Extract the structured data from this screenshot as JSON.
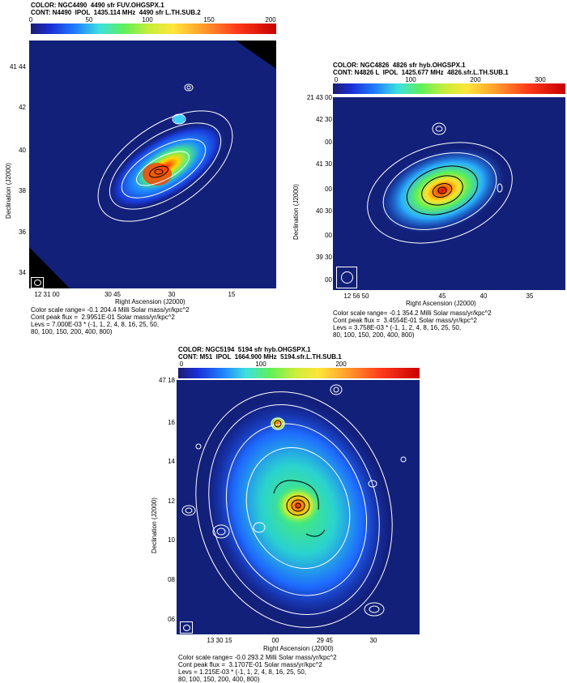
{
  "panel1": {
    "color_line": "COLOR: NGC4490  4490 sfr FUV.OHGSPX.1",
    "cont_line": "CONT: N4490  IPOL  1435.114 MHz  4490 sfr L.TH.SUB.2",
    "cbar_ticks": [
      "0",
      "50",
      "100",
      "150",
      "200"
    ],
    "y_ticks": [
      "41 44",
      "42",
      "40",
      "38",
      "36",
      "34"
    ],
    "x_ticks": [
      "12 31 00",
      "30 45",
      "30",
      "15"
    ],
    "xlabel": "Right Ascension (J2000)",
    "ylabel": "Declination (J2000)",
    "foot": [
      "Color scale range= -0.1 204.4 Milli Solar mass/yr/kpc^2",
      "Cont peak flux =  2.9951E-01 Solar mass/yr/kpc^2",
      "Levs = 7.000E-03 * (-1, 1, 2, 4, 8, 16, 25, 50,",
      "80, 100, 150, 200, 400, 800)"
    ]
  },
  "panel2": {
    "color_line": "COLOR: NGC4826  4826 sfr hyb.OHGSPX.1",
    "cont_line": "CONT: N4826 L  IPOL  1425.677 MHz  4826.sfr.L.TH.SUB.1",
    "cbar_ticks": [
      "0",
      "100",
      "200",
      "300"
    ],
    "y_ticks": [
      "21 43 00",
      "42 30",
      "00",
      "41 30",
      "00",
      "40 30",
      "00",
      "39 30",
      "00"
    ],
    "x_ticks": [
      "12 56 50",
      "45",
      "40",
      "35"
    ],
    "xlabel": "Right Ascension (J2000)",
    "ylabel": "Declination (J2000)",
    "foot": [
      "Color scale range= -0.1 354.2 Milli Solar mass/yr/kpc^2",
      "Cont peak flux =  3.4554E-01 Solar mass/yr/kpc^2",
      "Levs = 3.758E-03 * (-1, 1, 2, 4, 8, 16, 25, 50,",
      "80, 100, 150, 200, 400, 800)"
    ]
  },
  "panel3": {
    "color_line": "COLOR: NGC5194  5194 sfr hyb.OHGSPX.1",
    "cont_line": "CONT: M51  IPOL  1664.900 MHz  5194.sfr.L.TH.SUB.1",
    "cbar_ticks": [
      "0",
      "100",
      "200"
    ],
    "y_ticks": [
      "47 18",
      "16",
      "14",
      "12",
      "10",
      "08",
      "06"
    ],
    "x_ticks": [
      "13 30 15",
      "00",
      "29 45",
      "30"
    ],
    "xlabel": "Right Ascension (J2000)",
    "ylabel": "Declination (J2000)",
    "foot": [
      "Color scale range= -0.0 293.2 Milli Solar mass/yr/kpc^2",
      "Cont peak flux =  3.1707E-01 Solar mass/yr/kpc^2",
      "Levs = 1.215E-03 * (-1, 1, 2, 4, 8, 16, 25, 50,",
      "80, 100, 150, 200, 400, 800)"
    ]
  }
}
